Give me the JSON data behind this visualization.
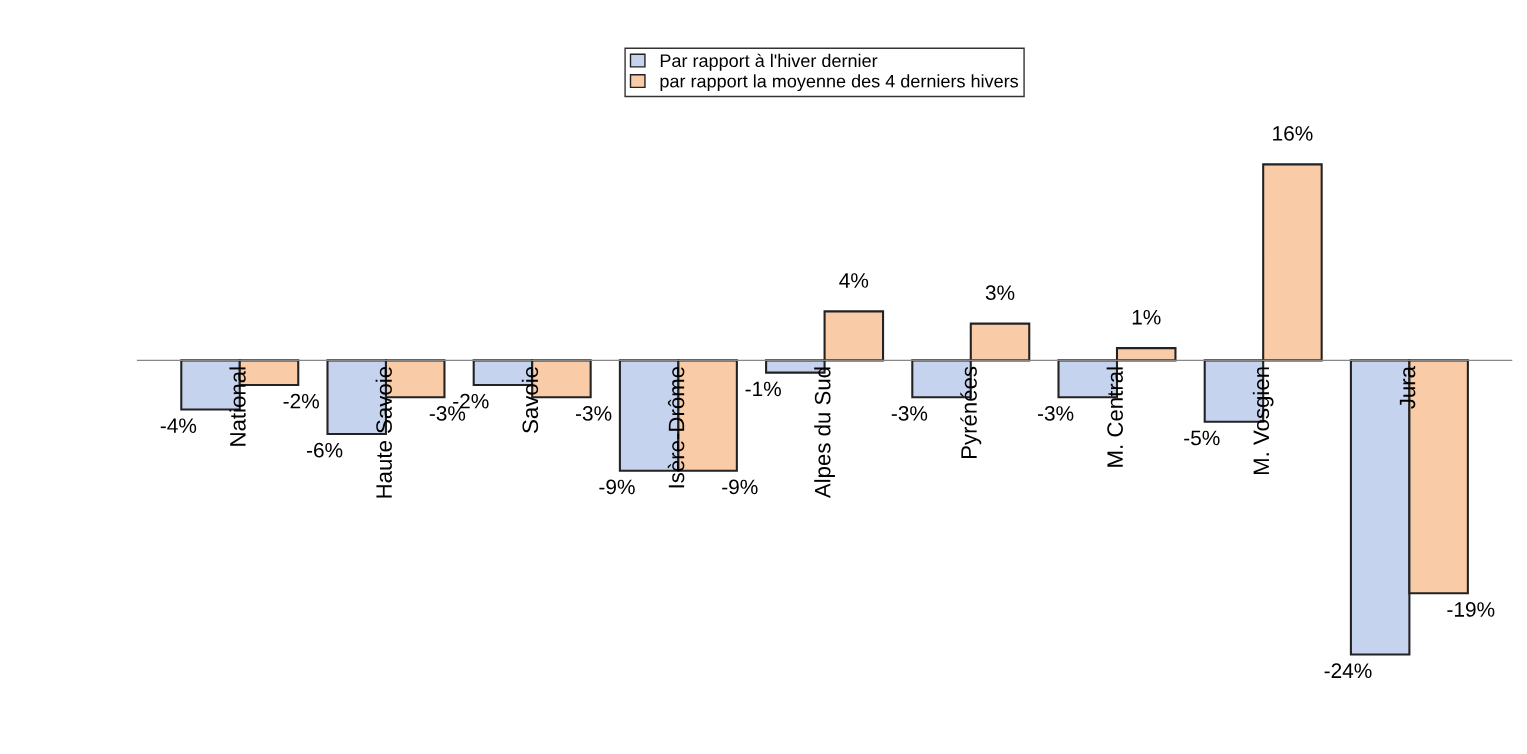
{
  "chart_data": {
    "type": "bar",
    "categories": [
      "National",
      "Haute Savoie",
      "Savoie",
      "Isère-Drôme",
      "Alpes du Sud",
      "Pyrénées",
      "M. Central",
      "M. Vosgien",
      "Jura"
    ],
    "series": [
      {
        "name": "Par rapport à l'hiver dernier",
        "color": "#c6d3ee",
        "values": [
          -4,
          -6,
          -2,
          -9,
          -1,
          -3,
          -3,
          -5,
          -24
        ],
        "value_labels": [
          "-4%",
          "-6%",
          "-2%",
          "-9%",
          "-1%",
          "-3%",
          "-3%",
          "-5%",
          "-24%"
        ]
      },
      {
        "name": "par rapport la moyenne des 4 derniers hivers",
        "color": "#f9cba7",
        "values": [
          -2,
          -3,
          -3,
          -9,
          4,
          3,
          1,
          16,
          -19
        ],
        "value_labels": [
          "-2%",
          "-3%",
          "-3%",
          "-9%",
          "4%",
          "3%",
          "1%",
          "16%",
          "-19%"
        ]
      }
    ],
    "legend": "top",
    "grid": false
  }
}
